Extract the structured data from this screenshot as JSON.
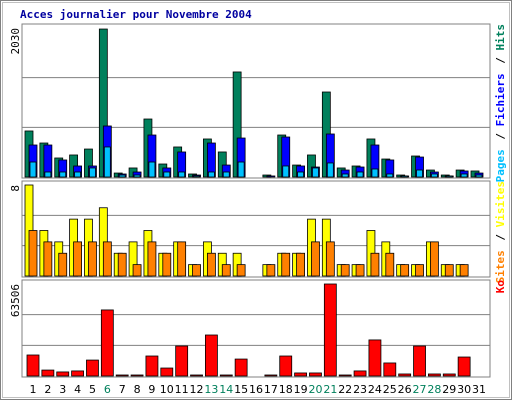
{
  "title": "Acces journalier pour Novembre 2004",
  "legend_separator": "/",
  "chart_data": [
    {
      "type": "bar",
      "ylim": [
        0,
        2030
      ],
      "yticks": [
        2030
      ],
      "grid_divisions": 3,
      "series": [
        {
          "name": "Hits",
          "color": "#00805c",
          "values": [
            627,
            463,
            259,
            300,
            381,
            2016,
            54,
            123,
            790,
            177,
            409,
            41,
            518,
            341,
            1431,
            0,
            27,
            572,
            163,
            300,
            1158,
            123,
            150,
            518,
            245,
            27,
            286,
            95,
            27,
            95,
            82
          ]
        },
        {
          "name": "Fichiers",
          "color": "#0000ff",
          "values": [
            436,
            436,
            232,
            150,
            150,
            695,
            41,
            68,
            572,
            123,
            341,
            27,
            463,
            163,
            531,
            0,
            14,
            545,
            150,
            136,
            586,
            95,
            136,
            436,
            232,
            14,
            272,
            68,
            14,
            82,
            54
          ]
        },
        {
          "name": "Pages",
          "color": "#00c0ff",
          "values": [
            204,
            68,
            68,
            68,
            123,
            409,
            27,
            27,
            204,
            68,
            68,
            14,
            68,
            68,
            204,
            0,
            0,
            150,
            68,
            123,
            191,
            41,
            68,
            109,
            41,
            14,
            95,
            41,
            14,
            41,
            27
          ]
        }
      ]
    },
    {
      "type": "bar",
      "ylim": [
        0,
        8
      ],
      "yticks": [
        8
      ],
      "grid_divisions": 3,
      "series": [
        {
          "name": "Visites",
          "color": "#ffff00",
          "values": [
            8,
            4,
            3,
            5,
            5,
            6,
            2,
            3,
            4,
            2,
            3,
            1,
            3,
            2,
            2,
            0,
            1,
            2,
            2,
            5,
            5,
            1,
            1,
            4,
            3,
            1,
            1,
            3,
            1,
            1,
            0
          ]
        },
        {
          "name": "Sites",
          "color": "#ff8000",
          "values": [
            4,
            3,
            2,
            3,
            3,
            3,
            2,
            1,
            3,
            2,
            3,
            1,
            2,
            1,
            1,
            0,
            1,
            2,
            2,
            3,
            3,
            1,
            1,
            2,
            2,
            1,
            1,
            3,
            1,
            1,
            0
          ]
        }
      ]
    },
    {
      "type": "bar",
      "ylim": [
        0,
        63506
      ],
      "yticks": [
        63506
      ],
      "grid_divisions": 3,
      "categories": [
        "1",
        "2",
        "3",
        "4",
        "5",
        "6",
        "7",
        "8",
        "9",
        "10",
        "11",
        "12",
        "13",
        "14",
        "15",
        "16",
        "17",
        "18",
        "19",
        "20",
        "21",
        "22",
        "23",
        "24",
        "25",
        "26",
        "27",
        "28",
        "29",
        "30",
        "31"
      ],
      "category_colors": [
        "#000000",
        "#000000",
        "#000000",
        "#000000",
        "#000000",
        "#00805c",
        "#000000",
        "#000000",
        "#000000",
        "#000000",
        "#000000",
        "#000000",
        "#00805c",
        "#00805c",
        "#000000",
        "#000000",
        "#000000",
        "#000000",
        "#000000",
        "#00805c",
        "#00805c",
        "#000000",
        "#000000",
        "#000000",
        "#000000",
        "#000000",
        "#00805c",
        "#00805c",
        "#000000",
        "#000000",
        "#000000"
      ],
      "series": [
        {
          "name": "Ko",
          "color": "#ff0000",
          "values": [
            14500,
            4100,
            2800,
            3500,
            11000,
            45600,
            700,
            700,
            13800,
            5500,
            20700,
            700,
            28300,
            700,
            11700,
            0,
            700,
            13800,
            2100,
            2100,
            63506,
            700,
            3500,
            24900,
            9000,
            1400,
            20700,
            1400,
            1400,
            13100,
            0
          ]
        }
      ]
    }
  ]
}
